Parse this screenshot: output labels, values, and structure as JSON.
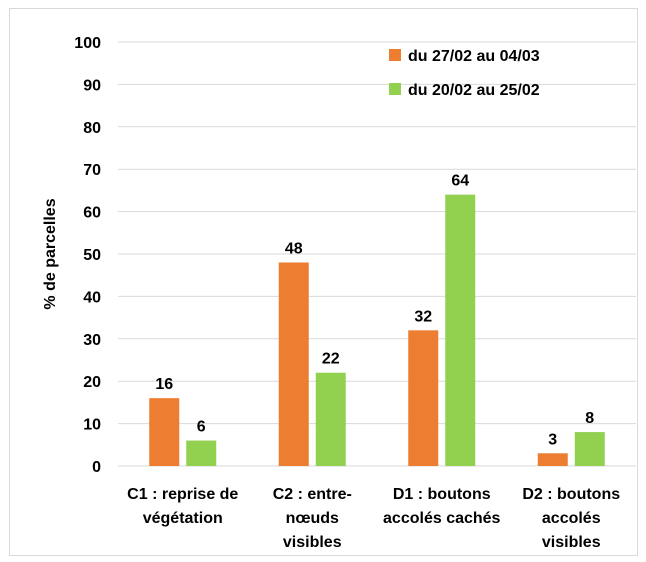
{
  "chart_data": {
    "type": "bar",
    "ylabel": "% de parcelles",
    "xlabel": "",
    "ylim": [
      0,
      100
    ],
    "yticks": [
      0,
      10,
      20,
      30,
      40,
      50,
      60,
      70,
      80,
      90,
      100
    ],
    "grid": true,
    "legend_position": "top-right",
    "categories": [
      [
        "C1 : reprise de",
        "végétation"
      ],
      [
        "C2 : entre-",
        "nœuds",
        "visibles"
      ],
      [
        "D1 : boutons",
        "accolés cachés"
      ],
      [
        "D2 : boutons",
        "accolés",
        "visibles"
      ]
    ],
    "series": [
      {
        "name": "du 27/02 au 04/03",
        "color": "#ED7D31",
        "values": [
          16,
          48,
          32,
          3
        ],
        "labels": [
          "16",
          "48",
          "32",
          "3"
        ]
      },
      {
        "name": "du 20/02 au 25/02",
        "color": "#92D050",
        "values": [
          6,
          22,
          64,
          8
        ],
        "labels": [
          "6",
          "22",
          "64",
          "8"
        ]
      }
    ]
  }
}
